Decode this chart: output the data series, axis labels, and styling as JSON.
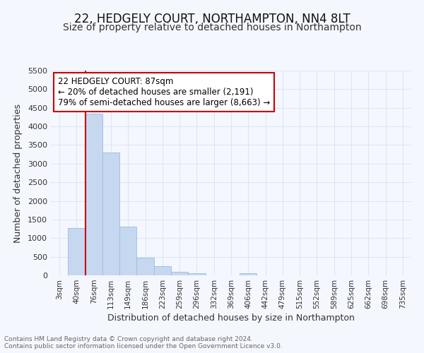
{
  "title": "22, HEDGELY COURT, NORTHAMPTON, NN4 8LT",
  "subtitle": "Size of property relative to detached houses in Northampton",
  "xlabel": "Distribution of detached houses by size in Northampton",
  "ylabel": "Number of detached properties",
  "footnote1": "Contains HM Land Registry data © Crown copyright and database right 2024.",
  "footnote2": "Contains public sector information licensed under the Open Government Licence v3.0.",
  "annotation_line1": "22 HEDGELY COURT: 87sqm",
  "annotation_line2": "← 20% of detached houses are smaller (2,191)",
  "annotation_line3": "79% of semi-detached houses are larger (8,663) →",
  "categories": [
    "3sqm",
    "40sqm",
    "76sqm",
    "113sqm",
    "149sqm",
    "186sqm",
    "223sqm",
    "259sqm",
    "296sqm",
    "332sqm",
    "369sqm",
    "406sqm",
    "442sqm",
    "479sqm",
    "515sqm",
    "552sqm",
    "589sqm",
    "625sqm",
    "662sqm",
    "698sqm",
    "735sqm"
  ],
  "values": [
    0,
    1280,
    4350,
    3300,
    1300,
    480,
    240,
    100,
    65,
    0,
    0,
    65,
    0,
    0,
    0,
    0,
    0,
    0,
    0,
    0,
    0
  ],
  "bar_color": "#c5d8f0",
  "bar_edge_color": "#9bbde0",
  "red_line_x": 2.0,
  "ylim": [
    0,
    5500
  ],
  "yticks": [
    0,
    500,
    1000,
    1500,
    2000,
    2500,
    3000,
    3500,
    4000,
    4500,
    5000,
    5500
  ],
  "bg_color": "#f5f7ff",
  "grid_color": "#dce6f5",
  "annotation_box_color": "#cc0000",
  "title_fontsize": 12,
  "subtitle_fontsize": 10
}
